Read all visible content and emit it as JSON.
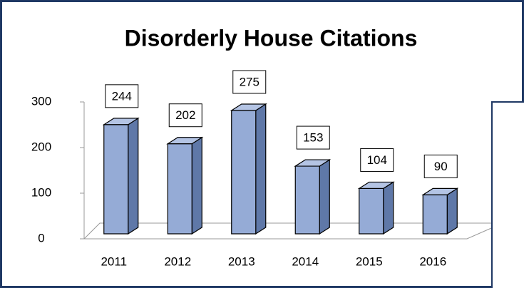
{
  "chart_data": {
    "type": "bar3d",
    "title": "Disorderly House Citations",
    "categories": [
      "2011",
      "2012",
      "2013",
      "2014",
      "2015",
      "2016"
    ],
    "values": [
      244,
      202,
      275,
      153,
      104,
      90
    ],
    "color": "#95abd6",
    "ylim": [
      0,
      300
    ],
    "yticks": [
      0,
      100,
      200,
      300
    ]
  }
}
